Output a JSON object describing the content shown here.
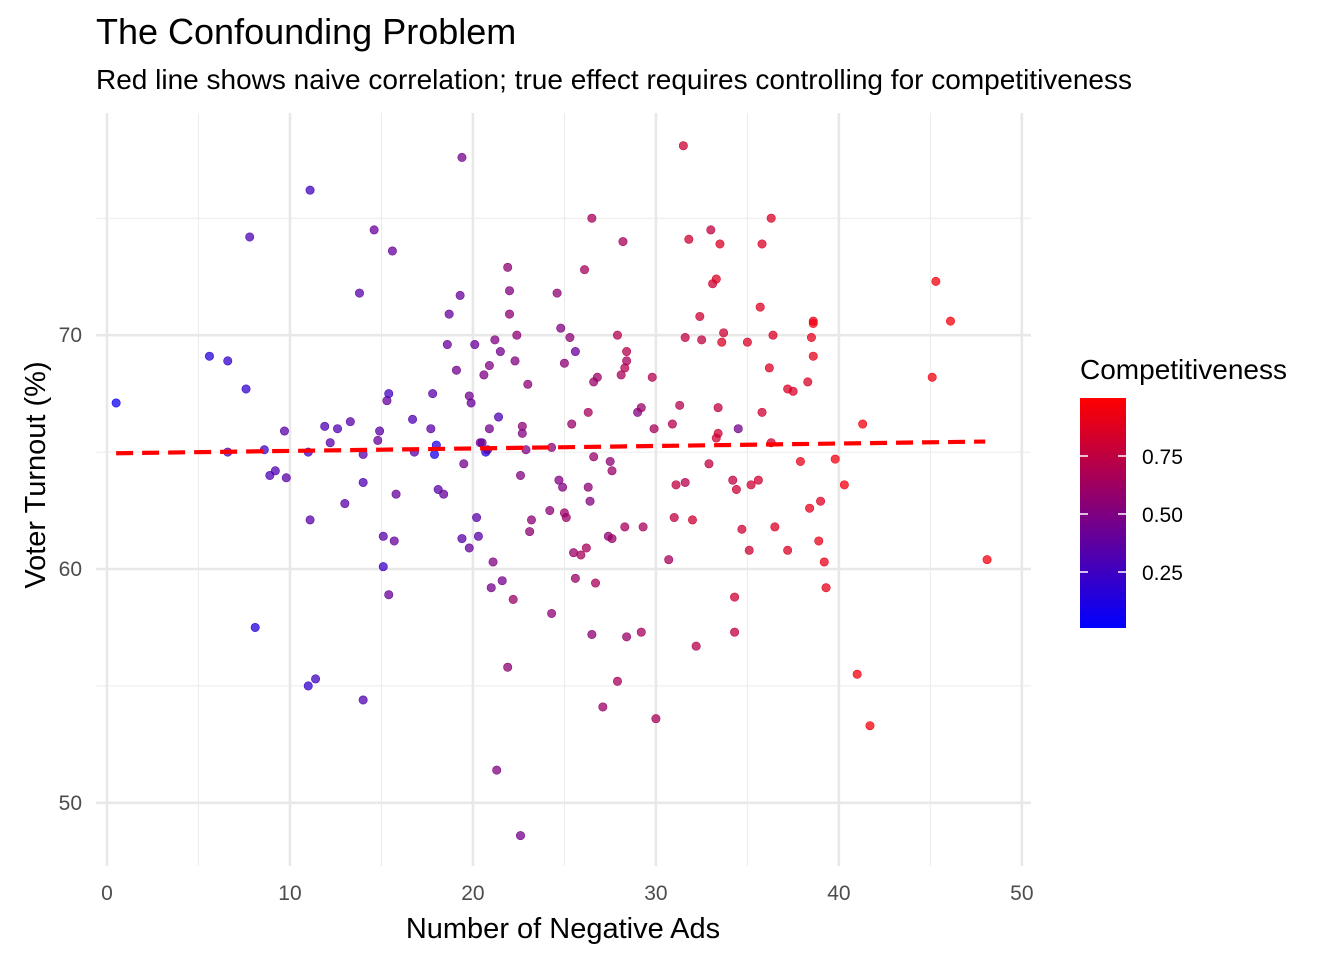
{
  "title": "The Confounding Problem",
  "subtitle": "Red line shows naive correlation; true effect requires controlling for competitiveness",
  "chart_data": {
    "type": "scatter",
    "xlabel": "Number of Negative Ads",
    "ylabel": "Voter Turnout (%)",
    "xlim": [
      -0.6,
      50.5
    ],
    "ylim": [
      47.3,
      79.5
    ],
    "x_ticks": [
      "0",
      "10",
      "20",
      "30",
      "40",
      "50"
    ],
    "y_ticks": [
      "50",
      "60",
      "70"
    ],
    "grid": true,
    "legend": {
      "title": "Competitiveness",
      "labels": [
        "0.75",
        "0.50",
        "0.25"
      ],
      "scale": {
        "low_color": "#0000ff",
        "high_color": "#ff0000",
        "min": 0.0,
        "max": 1.0
      },
      "placement": "right"
    },
    "trend_line": {
      "style": "dashed",
      "color": "#ff0000",
      "x": [
        0.5,
        48.0
      ],
      "y": [
        64.95,
        65.45
      ]
    },
    "series": [
      {
        "points": [
          [
            0.5,
            67.1,
            0.05
          ],
          [
            5.6,
            69.1,
            0.15
          ],
          [
            6.6,
            68.9,
            0.2
          ],
          [
            7.6,
            67.7,
            0.2
          ],
          [
            7.8,
            74.2,
            0.3
          ],
          [
            8.1,
            57.5,
            0.15
          ],
          [
            8.6,
            65.1,
            0.25
          ],
          [
            8.9,
            64.0,
            0.3
          ],
          [
            9.2,
            64.2,
            0.3
          ],
          [
            9.7,
            65.9,
            0.35
          ],
          [
            9.8,
            63.9,
            0.35
          ],
          [
            6.6,
            65.0,
            0.3
          ],
          [
            11.1,
            76.2,
            0.25
          ],
          [
            11.0,
            65.0,
            0.25
          ],
          [
            11.1,
            62.1,
            0.35
          ],
          [
            11.0,
            55.0,
            0.2
          ],
          [
            11.4,
            55.3,
            0.25
          ],
          [
            11.9,
            66.1,
            0.3
          ],
          [
            12.2,
            65.4,
            0.35
          ],
          [
            12.6,
            66.0,
            0.3
          ],
          [
            13.0,
            62.8,
            0.35
          ],
          [
            13.3,
            66.3,
            0.35
          ],
          [
            13.8,
            71.8,
            0.35
          ],
          [
            14.0,
            64.9,
            0.35
          ],
          [
            14.0,
            63.7,
            0.3
          ],
          [
            14.0,
            54.4,
            0.3
          ],
          [
            14.6,
            74.5,
            0.4
          ],
          [
            14.8,
            65.5,
            0.4
          ],
          [
            14.9,
            65.9,
            0.35
          ],
          [
            15.1,
            61.4,
            0.35
          ],
          [
            15.1,
            60.1,
            0.25
          ],
          [
            15.3,
            67.2,
            0.4
          ],
          [
            15.4,
            67.5,
            0.25
          ],
          [
            15.4,
            58.9,
            0.4
          ],
          [
            15.6,
            73.6,
            0.4
          ],
          [
            15.7,
            61.2,
            0.4
          ],
          [
            15.8,
            63.2,
            0.4
          ],
          [
            16.7,
            66.4,
            0.3
          ],
          [
            16.8,
            65.0,
            0.35
          ],
          [
            17.7,
            66.0,
            0.35
          ],
          [
            17.8,
            67.5,
            0.35
          ],
          [
            17.9,
            64.9,
            0.1
          ],
          [
            18.0,
            65.3,
            0.15
          ],
          [
            18.1,
            63.4,
            0.35
          ],
          [
            18.4,
            63.2,
            0.4
          ],
          [
            18.6,
            69.6,
            0.4
          ],
          [
            18.7,
            70.9,
            0.4
          ],
          [
            19.1,
            68.5,
            0.45
          ],
          [
            19.3,
            71.7,
            0.4
          ],
          [
            19.4,
            77.6,
            0.45
          ],
          [
            19.4,
            61.3,
            0.35
          ],
          [
            19.5,
            64.5,
            0.45
          ],
          [
            19.8,
            67.4,
            0.45
          ],
          [
            19.8,
            60.9,
            0.4
          ],
          [
            19.9,
            67.1,
            0.4
          ],
          [
            20.1,
            69.6,
            0.4
          ],
          [
            20.2,
            62.2,
            0.35
          ],
          [
            20.3,
            61.4,
            0.35
          ],
          [
            20.4,
            65.4,
            0.45
          ],
          [
            20.5,
            65.4,
            0.4
          ],
          [
            20.6,
            68.3,
            0.5
          ],
          [
            20.7,
            65.0,
            0.1
          ],
          [
            20.8,
            65.1,
            0.35
          ],
          [
            20.9,
            66.0,
            0.45
          ],
          [
            20.9,
            68.7,
            0.5
          ],
          [
            21.0,
            59.2,
            0.45
          ],
          [
            21.1,
            60.3,
            0.5
          ],
          [
            21.2,
            69.8,
            0.5
          ],
          [
            21.3,
            51.4,
            0.5
          ],
          [
            21.4,
            66.5,
            0.3
          ],
          [
            21.5,
            69.3,
            0.45
          ],
          [
            21.6,
            59.5,
            0.45
          ],
          [
            21.9,
            55.8,
            0.55
          ],
          [
            21.9,
            72.9,
            0.55
          ],
          [
            22.0,
            71.9,
            0.5
          ],
          [
            22.0,
            70.9,
            0.55
          ],
          [
            22.2,
            58.7,
            0.6
          ],
          [
            22.3,
            68.9,
            0.5
          ],
          [
            22.4,
            70.0,
            0.55
          ],
          [
            22.6,
            48.6,
            0.45
          ],
          [
            22.6,
            64.0,
            0.5
          ],
          [
            22.7,
            66.1,
            0.55
          ],
          [
            22.7,
            65.8,
            0.5
          ],
          [
            22.9,
            65.1,
            0.5
          ],
          [
            23.0,
            67.9,
            0.55
          ],
          [
            23.1,
            61.6,
            0.55
          ],
          [
            23.2,
            62.1,
            0.55
          ],
          [
            24.2,
            62.5,
            0.55
          ],
          [
            24.3,
            58.1,
            0.55
          ],
          [
            24.3,
            65.2,
            0.55
          ],
          [
            24.6,
            71.8,
            0.55
          ],
          [
            24.7,
            63.8,
            0.5
          ],
          [
            24.8,
            70.3,
            0.5
          ],
          [
            24.9,
            63.5,
            0.5
          ],
          [
            25.0,
            68.8,
            0.55
          ],
          [
            25.0,
            62.4,
            0.6
          ],
          [
            25.1,
            62.2,
            0.6
          ],
          [
            25.3,
            69.9,
            0.55
          ],
          [
            25.4,
            66.2,
            0.6
          ],
          [
            25.5,
            60.7,
            0.6
          ],
          [
            25.6,
            69.3,
            0.4
          ],
          [
            25.6,
            59.6,
            0.6
          ],
          [
            25.9,
            60.6,
            0.65
          ],
          [
            26.1,
            72.8,
            0.65
          ],
          [
            26.2,
            60.9,
            0.65
          ],
          [
            26.3,
            66.7,
            0.65
          ],
          [
            26.3,
            63.5,
            0.55
          ],
          [
            26.4,
            62.9,
            0.5
          ],
          [
            26.5,
            75.0,
            0.65
          ],
          [
            26.5,
            57.2,
            0.55
          ],
          [
            26.6,
            64.8,
            0.6
          ],
          [
            26.6,
            68.0,
            0.6
          ],
          [
            26.7,
            59.4,
            0.65
          ],
          [
            26.8,
            68.2,
            0.6
          ],
          [
            27.1,
            54.1,
            0.6
          ],
          [
            27.4,
            61.4,
            0.55
          ],
          [
            27.5,
            64.6,
            0.55
          ],
          [
            27.6,
            64.2,
            0.6
          ],
          [
            27.6,
            61.3,
            0.6
          ],
          [
            27.9,
            55.2,
            0.65
          ],
          [
            27.9,
            70.0,
            0.7
          ],
          [
            28.1,
            68.3,
            0.65
          ],
          [
            28.2,
            74.0,
            0.65
          ],
          [
            28.3,
            61.8,
            0.65
          ],
          [
            28.3,
            68.6,
            0.7
          ],
          [
            28.4,
            57.1,
            0.6
          ],
          [
            28.4,
            68.9,
            0.65
          ],
          [
            28.4,
            69.3,
            0.7
          ],
          [
            29.0,
            66.7,
            0.5
          ],
          [
            29.2,
            57.3,
            0.65
          ],
          [
            29.2,
            66.9,
            0.6
          ],
          [
            29.3,
            61.8,
            0.65
          ],
          [
            29.8,
            68.2,
            0.7
          ],
          [
            29.9,
            66.0,
            0.65
          ],
          [
            30.0,
            53.6,
            0.65
          ],
          [
            30.7,
            60.4,
            0.65
          ],
          [
            30.9,
            66.2,
            0.7
          ],
          [
            31.0,
            62.2,
            0.75
          ],
          [
            31.1,
            63.6,
            0.75
          ],
          [
            31.3,
            67.0,
            0.7
          ],
          [
            31.5,
            78.1,
            0.8
          ],
          [
            31.6,
            69.9,
            0.75
          ],
          [
            31.6,
            63.7,
            0.7
          ],
          [
            31.8,
            74.1,
            0.8
          ],
          [
            32.0,
            62.1,
            0.8
          ],
          [
            32.2,
            56.7,
            0.7
          ],
          [
            32.4,
            70.8,
            0.8
          ],
          [
            32.5,
            69.8,
            0.75
          ],
          [
            32.9,
            64.5,
            0.75
          ],
          [
            33.0,
            74.5,
            0.75
          ],
          [
            33.1,
            72.2,
            0.8
          ],
          [
            33.3,
            72.4,
            0.85
          ],
          [
            33.3,
            65.6,
            0.8
          ],
          [
            33.4,
            65.8,
            0.8
          ],
          [
            33.4,
            66.9,
            0.75
          ],
          [
            33.5,
            73.9,
            0.85
          ],
          [
            33.6,
            69.7,
            0.85
          ],
          [
            33.7,
            70.1,
            0.8
          ],
          [
            34.2,
            63.8,
            0.75
          ],
          [
            34.3,
            58.8,
            0.8
          ],
          [
            34.3,
            57.3,
            0.75
          ],
          [
            34.4,
            63.4,
            0.8
          ],
          [
            34.5,
            66.0,
            0.45
          ],
          [
            34.7,
            61.7,
            0.8
          ],
          [
            35.0,
            69.7,
            0.85
          ],
          [
            35.1,
            60.8,
            0.8
          ],
          [
            35.2,
            63.6,
            0.8
          ],
          [
            35.6,
            63.8,
            0.8
          ],
          [
            35.7,
            71.2,
            0.85
          ],
          [
            35.8,
            66.7,
            0.8
          ],
          [
            35.8,
            73.9,
            0.85
          ],
          [
            36.2,
            68.6,
            0.85
          ],
          [
            36.3,
            75.0,
            0.85
          ],
          [
            36.3,
            65.4,
            0.8
          ],
          [
            36.4,
            70.0,
            0.85
          ],
          [
            36.5,
            61.8,
            0.85
          ],
          [
            37.2,
            60.8,
            0.85
          ],
          [
            37.2,
            67.7,
            0.85
          ],
          [
            37.5,
            67.6,
            0.85
          ],
          [
            37.9,
            64.6,
            0.9
          ],
          [
            38.3,
            68.0,
            0.85
          ],
          [
            38.4,
            62.6,
            0.9
          ],
          [
            38.5,
            69.9,
            0.9
          ],
          [
            38.6,
            70.6,
            0.9
          ],
          [
            38.6,
            70.5,
            0.95
          ],
          [
            38.6,
            69.1,
            0.9
          ],
          [
            38.9,
            61.2,
            0.9
          ],
          [
            39.0,
            62.9,
            0.85
          ],
          [
            39.2,
            60.3,
            0.9
          ],
          [
            39.3,
            59.2,
            0.9
          ],
          [
            39.8,
            64.7,
            0.95
          ],
          [
            40.3,
            63.6,
            0.95
          ],
          [
            41.0,
            55.5,
            0.95
          ],
          [
            41.3,
            66.2,
            0.95
          ],
          [
            41.7,
            53.3,
            0.95
          ],
          [
            45.1,
            68.2,
            0.95
          ],
          [
            45.3,
            72.3,
            0.95
          ],
          [
            46.1,
            70.6,
            0.95
          ],
          [
            48.1,
            60.4,
            0.95
          ]
        ]
      }
    ]
  }
}
